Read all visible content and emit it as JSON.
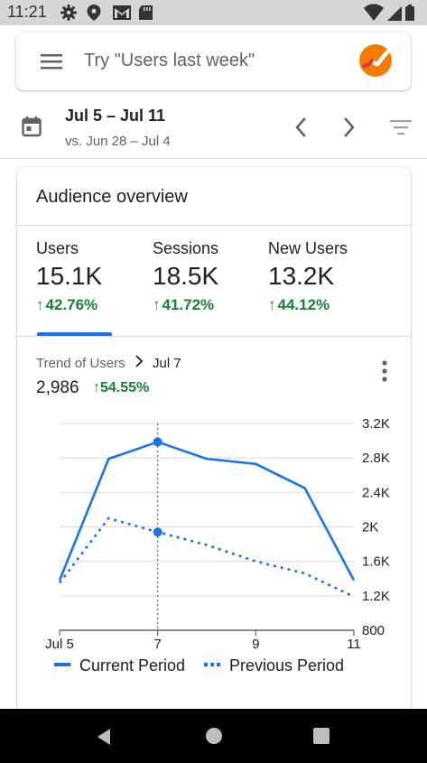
{
  "status_bar": {
    "time": "11:21",
    "left_icons": [
      "gear-icon",
      "location-icon",
      "gmail-icon",
      "sd-card-icon"
    ],
    "right_icons": [
      "wifi-icon",
      "signal-icon",
      "battery-icon"
    ]
  },
  "search": {
    "placeholder": "Try \"Users last week\""
  },
  "date_range": {
    "main": "Jul 5 – Jul 11",
    "compare": "vs. Jun 28 – Jul 4"
  },
  "card": {
    "title": "Audience overview",
    "metrics": [
      {
        "label": "Users",
        "value": "15.1K",
        "change": "42.76%"
      },
      {
        "label": "Sessions",
        "value": "18.5K",
        "change": "41.72%"
      },
      {
        "label": "New Users",
        "value": "13.2K",
        "change": "44.12%"
      }
    ],
    "trend": {
      "crumb_label": "Trend of Users",
      "crumb_date": "Jul 7",
      "value": "2,986",
      "change": "54.55%"
    }
  },
  "colors": {
    "accent": "#1a73e8",
    "positive": "#188038"
  },
  "chart_data": {
    "type": "line",
    "x": [
      5,
      6,
      7,
      8,
      9,
      10,
      11
    ],
    "x_tick_labels": [
      "Jul 5",
      "7",
      "9",
      "11"
    ],
    "x_tick_values": [
      5,
      7,
      9,
      11
    ],
    "y_tick_labels": [
      "800",
      "1.2K",
      "1.6K",
      "2K",
      "2.4K",
      "2.8K",
      "3.2K"
    ],
    "y_tick_values": [
      800,
      1200,
      1600,
      2000,
      2400,
      2800,
      3200
    ],
    "ylim": [
      800,
      3200
    ],
    "xlim": [
      5,
      11
    ],
    "grid": true,
    "y_axis_position": "right",
    "highlight_x": 7,
    "series": [
      {
        "name": "Current Period",
        "style": "solid",
        "values": [
          1380,
          2790,
          2986,
          2790,
          2730,
          2450,
          1380
        ]
      },
      {
        "name": "Previous Period",
        "style": "dotted",
        "values": [
          1350,
          2100,
          1940,
          1790,
          1600,
          1460,
          1190
        ]
      }
    ]
  }
}
